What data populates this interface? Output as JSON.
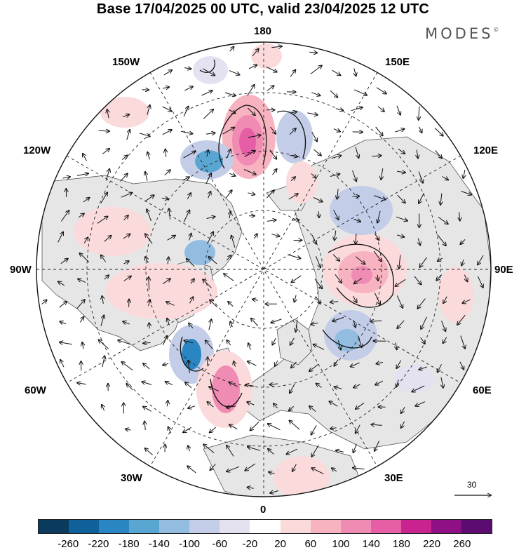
{
  "title": "Base 17/04/2025 00 UTC, valid 23/04/2025 12 UTC",
  "brand": "MODES",
  "brand_mark": "©",
  "longitude_labels": {
    "top": "180",
    "bottom": "0",
    "left": "90W",
    "right": "90E",
    "upper_left_1": "150W",
    "upper_left_2": "120W",
    "lower_left_1": "60W",
    "lower_left_2": "30W",
    "upper_right_1": "150E",
    "upper_right_2": "120E",
    "lower_right_1": "60E",
    "lower_right_2": "30E"
  },
  "vector_scale_label": "30",
  "colorbar": {
    "colors": [
      "#0a3a5e",
      "#10609a",
      "#2a86c2",
      "#5aa6d3",
      "#93bde0",
      "#c3cde8",
      "#e4e2f0",
      "#ffffff",
      "#fbdadb",
      "#f7b3c0",
      "#f08cb4",
      "#e65ea6",
      "#c8238f",
      "#8f0f84",
      "#5c0c70"
    ],
    "tick_labels": [
      "-260",
      "-220",
      "-180",
      "-140",
      "-100",
      "-60",
      "-20",
      "20",
      "60",
      "100",
      "140",
      "180",
      "220",
      "260"
    ]
  }
}
